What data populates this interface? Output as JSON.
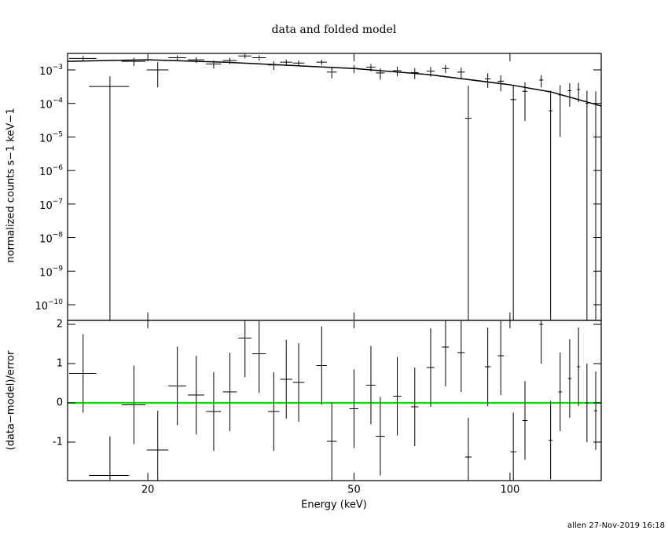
{
  "footer": "allen 27-Nov-2019 16:18",
  "chart_data": [
    {
      "type": "errorbar",
      "title": "data and folded model",
      "ylabel": "normalized counts s−1 keV−1",
      "xscale": "log",
      "yscale": "log",
      "xlim": [
        14,
        150
      ],
      "ylim": [
        3.4e-11,
        0.0031
      ],
      "xticks": [
        20,
        50,
        100
      ],
      "yticks": [
        {
          "value": 1e-10,
          "label": "10−10"
        },
        {
          "value": 1e-09,
          "label": "10−9"
        },
        {
          "value": 1e-08,
          "label": "10−8"
        },
        {
          "value": 1e-07,
          "label": "10−7"
        },
        {
          "value": 1e-06,
          "label": "10−6"
        },
        {
          "value": 1e-05,
          "label": "10−5"
        },
        {
          "value": 0.0001,
          "label": "10−4"
        },
        {
          "value": 0.001,
          "label": "10−3"
        }
      ],
      "color": "#000000",
      "x": [
        15.0,
        16.9,
        18.8,
        20.9,
        22.8,
        24.8,
        26.8,
        28.8,
        30.8,
        32.8,
        35.0,
        37.0,
        39.1,
        43.3,
        45.3,
        50.0,
        53.9,
        56.2,
        60.6,
        65.5,
        70.3,
        75.1,
        80.5,
        83.1,
        90.6,
        96.0,
        101.5,
        106.9,
        114.9,
        119.8,
        125.0,
        130.4,
        135.6,
        140.8,
        146.4
      ],
      "xerr": [
        0.9,
        1.5,
        1.0,
        1.0,
        0.9,
        0.9,
        0.9,
        0.9,
        0.9,
        1.0,
        0.9,
        1.0,
        1.0,
        1.0,
        1.0,
        1.0,
        1.1,
        1.1,
        1.1,
        1.1,
        1.2,
        1.2,
        1.3,
        1.2,
        1.2,
        1.3,
        1.3,
        1.2,
        1.0,
        1.0,
        1.0,
        1.0,
        0.9,
        0.9,
        1.0
      ],
      "values": [
        0.0022,
        0.00032,
        0.0018,
        0.001,
        0.0023,
        0.002,
        0.0015,
        0.0019,
        0.0026,
        0.0023,
        0.0014,
        0.0017,
        0.0016,
        0.0017,
        0.00086,
        0.0011,
        0.0012,
        0.00081,
        0.00095,
        0.00083,
        0.00092,
        0.0011,
        0.00086,
        3.6e-05,
        0.00054,
        0.00046,
        0.00013,
        0.00023,
        0.0005,
        6e-05,
        0.00018,
        0.00024,
        0.00026,
        0.0001,
        0.0001
      ],
      "yerr": [
        0.0004,
        0.00032,
        0.0005,
        0.0007,
        0.0004,
        0.0004,
        0.0004,
        0.0004,
        0.0004,
        0.0004,
        0.0004,
        0.0003,
        0.0003,
        0.0003,
        0.0003,
        0.0003,
        0.0003,
        0.0003,
        0.0003,
        0.0003,
        0.0003,
        0.0003,
        0.0003,
        0.0003,
        0.00025,
        0.00023,
        0.00022,
        0.0002,
        0.0002,
        0.00018,
        0.00017,
        0.00016,
        0.00015,
        0.00014,
        0.00013
      ],
      "model": {
        "x": [
          14,
          20,
          28,
          50,
          70,
          100,
          120,
          150
        ],
        "values": [
          0.0018,
          0.002,
          0.0017,
          0.0011,
          0.00072,
          0.00036,
          0.00022,
          8.4e-05
        ]
      }
    },
    {
      "type": "errorbar",
      "xlabel": "Energy (keV)",
      "ylabel": "(data−model)/error",
      "xscale": "log",
      "xlim": [
        14,
        150
      ],
      "ylim": [
        -1.98,
        2.1
      ],
      "xticks": [
        20,
        50,
        100
      ],
      "yticks": [
        -1,
        0,
        1,
        2
      ],
      "color": "#000000",
      "hline": 0,
      "hline_color": "#00dd00",
      "x": [
        15.0,
        16.9,
        18.8,
        20.9,
        22.8,
        24.8,
        26.8,
        28.8,
        30.8,
        32.8,
        35.0,
        37.0,
        39.1,
        43.3,
        45.3,
        50.0,
        53.9,
        56.2,
        60.6,
        65.5,
        70.3,
        75.1,
        80.5,
        83.1,
        90.6,
        96.0,
        101.5,
        106.9,
        114.9,
        119.8,
        125.0,
        130.4,
        135.6,
        140.8,
        146.4
      ],
      "xerr": [
        0.9,
        1.5,
        1.0,
        1.0,
        0.9,
        0.9,
        0.9,
        0.9,
        0.9,
        1.0,
        0.9,
        1.0,
        1.0,
        1.0,
        1.0,
        1.0,
        1.1,
        1.1,
        1.1,
        1.1,
        1.2,
        1.2,
        1.3,
        1.2,
        1.2,
        1.3,
        1.3,
        1.2,
        1.0,
        1.0,
        1.0,
        1.0,
        0.9,
        0.9,
        1.0
      ],
      "values": [
        0.75,
        -1.85,
        -0.05,
        -1.2,
        0.43,
        0.2,
        -0.22,
        0.28,
        1.65,
        1.25,
        -0.22,
        0.6,
        0.52,
        0.95,
        -0.98,
        -0.15,
        0.45,
        -0.85,
        0.17,
        -0.1,
        0.9,
        1.42,
        1.28,
        -1.38,
        0.92,
        1.2,
        -1.25,
        -0.45,
        2.0,
        -0.95,
        0.28,
        0.62,
        0.92,
        0.0,
        -0.2
      ],
      "yerr": [
        1,
        1,
        1,
        1,
        1,
        1,
        1,
        1,
        1,
        1,
        1,
        1,
        1,
        1,
        1,
        1,
        1,
        1,
        1,
        1,
        1,
        1,
        1,
        1,
        1,
        1,
        1,
        1,
        1,
        1,
        1,
        1,
        1,
        1,
        1
      ]
    }
  ]
}
